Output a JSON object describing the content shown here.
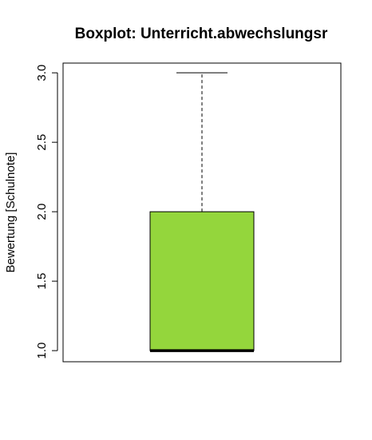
{
  "chart_data": {
    "type": "boxplot",
    "title": "Boxplot: Unterricht.abwechslungsr",
    "ylabel": "Bewertung [Schulnote]",
    "ylim": [
      0.92,
      3.07
    ],
    "yticks": [
      1.0,
      1.5,
      2.0,
      2.5,
      3.0
    ],
    "ytick_labels": [
      "1.0",
      "1.5",
      "2.0",
      "2.5",
      "3.0"
    ],
    "box": {
      "min": 1.0,
      "q1": 1.0,
      "median": 1.0,
      "q3": 2.0,
      "max": 3.0
    },
    "box_color": "#94D63C",
    "grid": false
  }
}
